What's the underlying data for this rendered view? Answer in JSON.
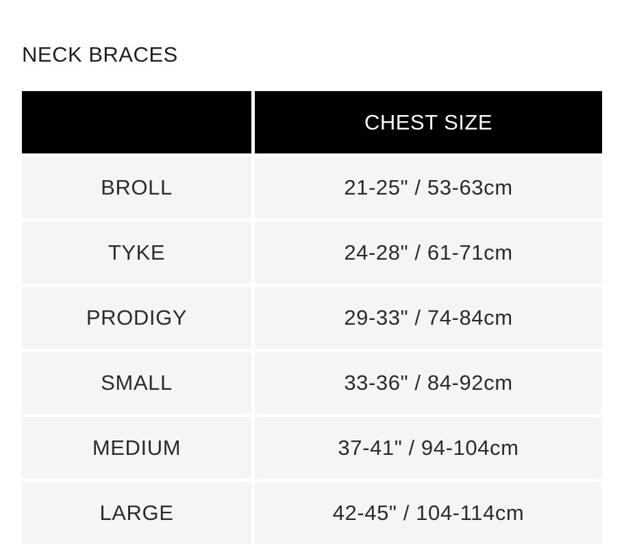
{
  "title": "NECK BRACES",
  "headers": [
    "",
    "CHEST SIZE"
  ],
  "rows": [
    {
      "size": "BROLL",
      "chest": "21-25\" / 53-63cm"
    },
    {
      "size": "TYKE",
      "chest": "24-28\" / 61-71cm"
    },
    {
      "size": "PRODIGY",
      "chest": "29-33\" / 74-84cm"
    },
    {
      "size": "SMALL",
      "chest": "33-36\" / 84-92cm"
    },
    {
      "size": "MEDIUM",
      "chest": "37-41\" / 94-104cm"
    },
    {
      "size": "LARGE",
      "chest": "42-45\" / 104-114cm"
    }
  ]
}
